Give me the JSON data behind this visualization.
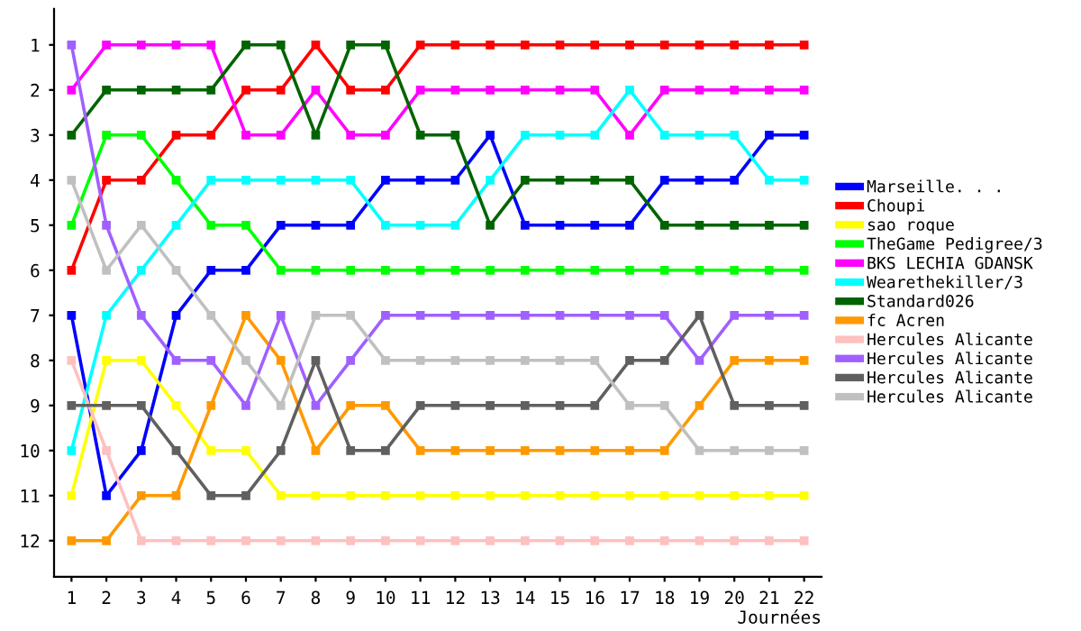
{
  "chart_data": {
    "type": "line",
    "xlabel": "Journées",
    "x": [
      1,
      2,
      3,
      4,
      5,
      6,
      7,
      8,
      9,
      10,
      11,
      12,
      13,
      14,
      15,
      16,
      17,
      18,
      19,
      20,
      21,
      22
    ],
    "xlim": [
      0.5,
      22.5
    ],
    "xticks": [
      1,
      2,
      3,
      4,
      5,
      6,
      7,
      8,
      9,
      10,
      11,
      12,
      13,
      14,
      15,
      16,
      17,
      18,
      19,
      20,
      21,
      22
    ],
    "ylim": [
      12.8,
      0.2
    ],
    "yticks": [
      1,
      2,
      3,
      4,
      5,
      6,
      7,
      8,
      9,
      10,
      11,
      12
    ],
    "marker": "square",
    "line_style": "solid",
    "grid": false,
    "legend": "right",
    "series": [
      {
        "name": "Marseille. . .",
        "color": "#0000ff",
        "values": [
          7,
          11,
          10,
          7,
          6,
          6,
          5,
          5,
          5,
          4,
          4,
          4,
          3,
          5,
          5,
          5,
          5,
          4,
          4,
          4,
          3,
          3
        ]
      },
      {
        "name": "Choupi",
        "color": "#ff0000",
        "values": [
          6,
          4,
          4,
          3,
          3,
          2,
          2,
          1,
          2,
          2,
          1,
          1,
          1,
          1,
          1,
          1,
          1,
          1,
          1,
          1,
          1,
          1
        ]
      },
      {
        "name": "sao roque",
        "color": "#ffff00",
        "values": [
          11,
          8,
          8,
          9,
          10,
          10,
          11,
          11,
          11,
          11,
          11,
          11,
          11,
          11,
          11,
          11,
          11,
          11,
          11,
          11,
          11,
          11
        ]
      },
      {
        "name": "TheGame Pedigree/3",
        "color": "#00ff00",
        "values": [
          5,
          3,
          3,
          4,
          5,
          5,
          6,
          6,
          6,
          6,
          6,
          6,
          6,
          6,
          6,
          6,
          6,
          6,
          6,
          6,
          6,
          6
        ]
      },
      {
        "name": "BKS LECHIA GDANSK",
        "color": "#ff00ff",
        "values": [
          2,
          1,
          1,
          1,
          1,
          3,
          3,
          2,
          3,
          3,
          2,
          2,
          2,
          2,
          2,
          2,
          3,
          2,
          2,
          2,
          2,
          2
        ]
      },
      {
        "name": "Wearethekiller/3",
        "color": "#00ffff",
        "values": [
          10,
          7,
          6,
          5,
          4,
          4,
          4,
          4,
          4,
          5,
          5,
          5,
          4,
          3,
          3,
          3,
          2,
          3,
          3,
          3,
          4,
          4
        ]
      },
      {
        "name": "Standard026",
        "color": "#006400",
        "values": [
          3,
          2,
          2,
          2,
          2,
          1,
          1,
          3,
          1,
          1,
          3,
          3,
          5,
          4,
          4,
          4,
          4,
          5,
          5,
          5,
          5,
          5
        ]
      },
      {
        "name": "fc Acren",
        "color": "#ff9900",
        "values": [
          12,
          12,
          11,
          11,
          9,
          7,
          8,
          10,
          9,
          9,
          10,
          10,
          10,
          10,
          10,
          10,
          10,
          10,
          9,
          8,
          8,
          8
        ]
      },
      {
        "name": "Hercules Alicante",
        "color": "#ffc0c0",
        "values": [
          8,
          10,
          12,
          12,
          12,
          12,
          12,
          12,
          12,
          12,
          12,
          12,
          12,
          12,
          12,
          12,
          12,
          12,
          12,
          12,
          12,
          12
        ]
      },
      {
        "name": "Hercules Alicante",
        "color": "#a060ff",
        "values": [
          1,
          5,
          7,
          8,
          8,
          9,
          7,
          9,
          8,
          7,
          7,
          7,
          7,
          7,
          7,
          7,
          7,
          7,
          8,
          7,
          7,
          7
        ]
      },
      {
        "name": "Hercules Alicante",
        "color": "#606060",
        "values": [
          9,
          9,
          9,
          10,
          11,
          11,
          10,
          8,
          10,
          10,
          9,
          9,
          9,
          9,
          9,
          9,
          8,
          8,
          7,
          9,
          9,
          9
        ]
      },
      {
        "name": "Hercules Alicante",
        "color": "#c0c0c0",
        "values": [
          4,
          6,
          5,
          6,
          7,
          8,
          9,
          7,
          7,
          8,
          8,
          8,
          8,
          8,
          8,
          8,
          9,
          9,
          10,
          10,
          10,
          10
        ]
      }
    ]
  }
}
